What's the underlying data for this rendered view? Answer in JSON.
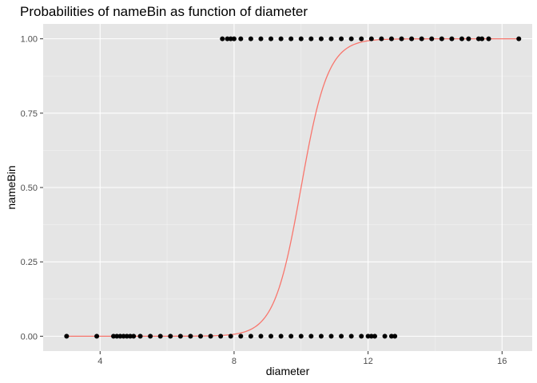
{
  "chart_data": {
    "type": "scatter",
    "title": "Probabilities of nameBin as function of diameter",
    "xlabel": "diameter",
    "ylabel": "nameBin",
    "xlim": [
      2.3,
      16.9
    ],
    "ylim": [
      -0.05,
      1.05
    ],
    "x_ticks": [
      4,
      8,
      12,
      16
    ],
    "x_tick_labels": [
      "4",
      "8",
      "12",
      "16"
    ],
    "y_ticks": [
      0,
      0.25,
      0.5,
      0.75,
      1
    ],
    "y_tick_labels": [
      "0.00",
      "0.25",
      "0.50",
      "0.75",
      "1.00"
    ],
    "grid": true,
    "legend": "none",
    "colors": {
      "panel": "#e5e5e5",
      "grid_major": "#ffffff",
      "grid_minor": "#f2f2f2",
      "points": "#000000",
      "curve": "#f8766d"
    },
    "series": [
      {
        "values": [
          [
            3.0,
            0
          ],
          [
            3.9,
            0
          ],
          [
            4.4,
            0
          ],
          [
            4.5,
            0
          ],
          [
            4.6,
            0
          ],
          [
            4.7,
            0
          ],
          [
            4.8,
            0
          ],
          [
            4.9,
            0
          ],
          [
            5.0,
            0
          ],
          [
            5.2,
            0
          ],
          [
            5.5,
            0
          ],
          [
            5.8,
            0
          ],
          [
            6.1,
            0
          ],
          [
            6.4,
            0
          ],
          [
            6.7,
            0
          ],
          [
            7.0,
            0
          ],
          [
            7.3,
            0
          ],
          [
            7.6,
            0
          ],
          [
            7.9,
            0
          ],
          [
            8.2,
            0
          ],
          [
            8.5,
            0
          ],
          [
            8.8,
            0
          ],
          [
            9.1,
            0
          ],
          [
            9.4,
            0
          ],
          [
            9.7,
            0
          ],
          [
            10.0,
            0
          ],
          [
            10.3,
            0
          ],
          [
            10.6,
            0
          ],
          [
            10.9,
            0
          ],
          [
            11.2,
            0
          ],
          [
            11.5,
            0
          ],
          [
            11.8,
            0
          ],
          [
            12.0,
            0
          ],
          [
            12.1,
            0
          ],
          [
            12.2,
            0
          ],
          [
            12.5,
            0
          ],
          [
            12.7,
            0
          ],
          [
            12.8,
            0
          ],
          [
            7.65,
            1
          ],
          [
            7.8,
            1
          ],
          [
            7.9,
            1
          ],
          [
            8.0,
            1
          ],
          [
            8.2,
            1
          ],
          [
            8.5,
            1
          ],
          [
            8.8,
            1
          ],
          [
            9.1,
            1
          ],
          [
            9.4,
            1
          ],
          [
            9.7,
            1
          ],
          [
            10.0,
            1
          ],
          [
            10.3,
            1
          ],
          [
            10.6,
            1
          ],
          [
            10.9,
            1
          ],
          [
            11.2,
            1
          ],
          [
            11.5,
            1
          ],
          [
            11.8,
            1
          ],
          [
            12.1,
            1
          ],
          [
            12.4,
            1
          ],
          [
            12.7,
            1
          ],
          [
            13.0,
            1
          ],
          [
            13.3,
            1
          ],
          [
            13.6,
            1
          ],
          [
            13.9,
            1
          ],
          [
            14.2,
            1
          ],
          [
            14.5,
            1
          ],
          [
            14.8,
            1
          ],
          [
            15.0,
            1
          ],
          [
            15.3,
            1
          ],
          [
            15.4,
            1
          ],
          [
            15.6,
            1
          ],
          [
            16.5,
            1
          ]
        ]
      }
    ],
    "fitted_curve": {
      "type": "logistic",
      "midpoint": 10.0,
      "slope": 2.5,
      "x_range": [
        3.0,
        16.5
      ]
    }
  }
}
